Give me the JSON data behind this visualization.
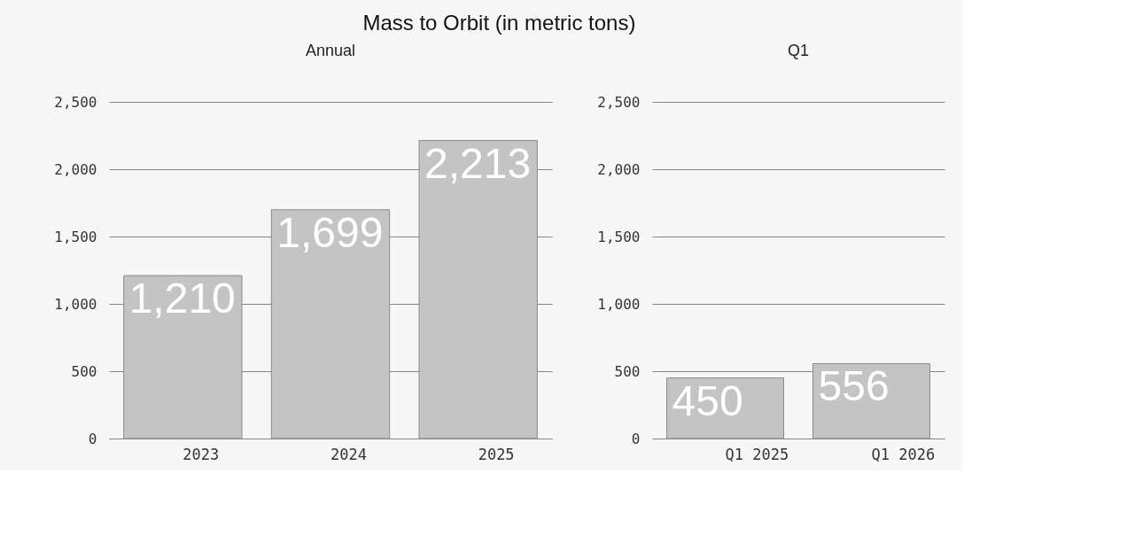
{
  "chart_data": [
    {
      "type": "bar",
      "title": "Mass to Orbit (in metric tons)",
      "subtitle": "Annual",
      "categories": [
        "2023",
        "2024",
        "2025"
      ],
      "values": [
        1210,
        1699,
        2213
      ],
      "color": "#c4c4c4",
      "ylim": [
        0,
        2500
      ],
      "yticks": [
        {
          "value": 0,
          "label": "0"
        },
        {
          "value": 500,
          "label": "500"
        },
        {
          "value": 1000,
          "label": "1,000"
        },
        {
          "value": 1500,
          "label": "1,500"
        },
        {
          "value": 2000,
          "label": "2,000"
        },
        {
          "value": 2500,
          "label": "2,500"
        }
      ],
      "grid": "y",
      "data_labels": true,
      "value_labels": [
        "1,210",
        "1,699",
        "2,213"
      ]
    },
    {
      "type": "bar",
      "subtitle": "Q1",
      "categories": [
        "Q1 2025",
        "Q1 2026"
      ],
      "values": [
        450,
        556
      ],
      "color": "#c4c4c4",
      "ylim": [
        0,
        2500
      ],
      "yticks": [
        {
          "value": 0,
          "label": "0"
        },
        {
          "value": 500,
          "label": "500"
        },
        {
          "value": 1000,
          "label": "1,000"
        },
        {
          "value": 1500,
          "label": "1,500"
        },
        {
          "value": 2000,
          "label": "2,000"
        },
        {
          "value": 2500,
          "label": "2,500"
        }
      ],
      "grid": "y",
      "data_labels": true,
      "value_labels": [
        "450",
        "556"
      ]
    }
  ]
}
